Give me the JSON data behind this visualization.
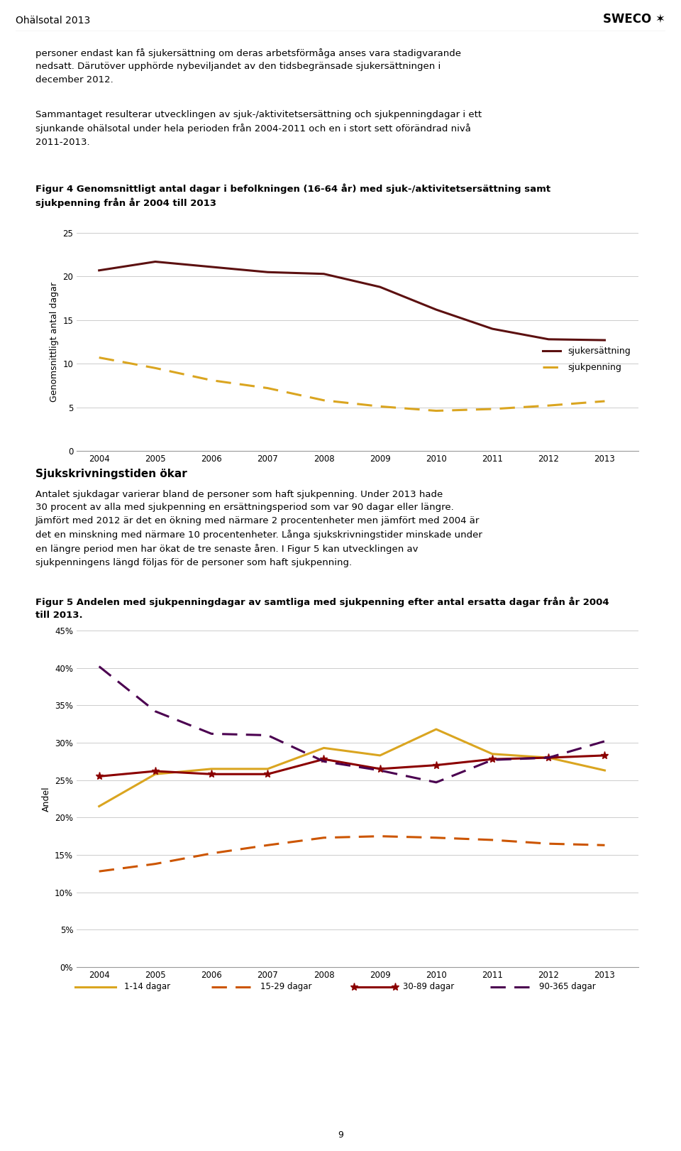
{
  "fig4": {
    "ylabel": "Genomsnittligt antal dagar",
    "years": [
      2004,
      2005,
      2006,
      2007,
      2008,
      2009,
      2010,
      2011,
      2012,
      2013
    ],
    "sjukersattning": [
      20.7,
      21.7,
      21.1,
      20.5,
      20.3,
      18.8,
      16.2,
      14.0,
      12.8,
      12.7
    ],
    "sjukpenning": [
      10.7,
      9.5,
      8.1,
      7.2,
      5.8,
      5.1,
      4.6,
      4.8,
      5.2,
      5.7
    ],
    "ylim": [
      0,
      25
    ],
    "yticks": [
      0,
      5,
      10,
      15,
      20,
      25
    ],
    "line1_color": "#5C1010",
    "line2_color": "#DAA520",
    "legend_labels": [
      "sjukersättning",
      "sjukpenning"
    ]
  },
  "fig5": {
    "ylabel": "Andel",
    "years": [
      2004,
      2005,
      2006,
      2007,
      2008,
      2009,
      2010,
      2011,
      2012,
      2013
    ],
    "d1_14": [
      0.215,
      0.258,
      0.265,
      0.265,
      0.293,
      0.283,
      0.318,
      0.285,
      0.28,
      0.263
    ],
    "d15_29": [
      0.128,
      0.138,
      0.152,
      0.163,
      0.173,
      0.175,
      0.173,
      0.17,
      0.165,
      0.163
    ],
    "d30_89": [
      0.255,
      0.262,
      0.258,
      0.258,
      0.278,
      0.265,
      0.27,
      0.278,
      0.28,
      0.283
    ],
    "d90_365": [
      0.402,
      0.342,
      0.312,
      0.31,
      0.275,
      0.263,
      0.247,
      0.277,
      0.28,
      0.302
    ],
    "ylim": [
      0,
      0.45
    ],
    "yticks": [
      0,
      0.05,
      0.1,
      0.15,
      0.2,
      0.25,
      0.3,
      0.35,
      0.4,
      0.45
    ],
    "color_1_14": "#DAA520",
    "color_15_29": "#CC5500",
    "color_30_89": "#8B0000",
    "color_90_365": "#4B0050",
    "legend_labels": [
      "1-14 dagar",
      "15-29 dagar",
      "30-89 dagar",
      "90-365 dagar"
    ]
  },
  "page_title": "Ohälsotal 2013",
  "page_number": "9",
  "background_color": "#FFFFFF"
}
